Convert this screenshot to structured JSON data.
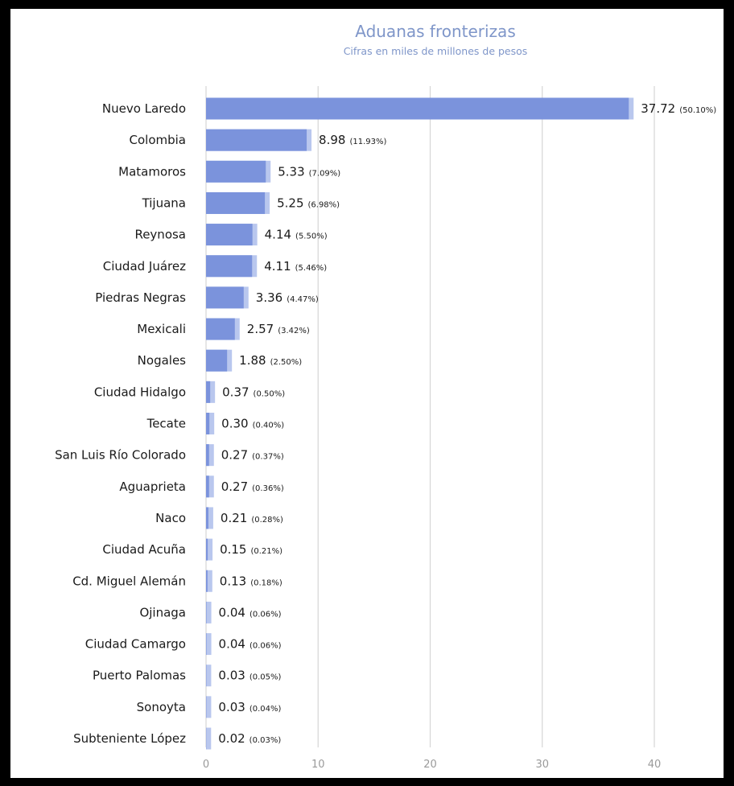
{
  "chart_data": {
    "type": "bar",
    "orientation": "horizontal",
    "title": "Aduanas fronterizas",
    "subtitle": "Cifras en miles de millones de pesos",
    "xlim": [
      0,
      40
    ],
    "x_ticks": [
      "0",
      "10",
      "20",
      "30",
      "40"
    ],
    "grid": true,
    "bar_color": "#7b93dc",
    "bar_highlight_color": "#b9c7ee",
    "categories": [
      "Nuevo Laredo",
      "Colombia",
      "Matamoros",
      "Tijuana",
      "Reynosa",
      "Ciudad Juárez",
      "Piedras Negras",
      "Mexicali",
      "Nogales",
      "Ciudad Hidalgo",
      "Tecate",
      "San Luis Río Colorado",
      "Aguaprieta",
      "Naco",
      "Ciudad Acuña",
      "Cd. Miguel Alemán",
      "Ojinaga",
      "Ciudad Camargo",
      "Puerto Palomas",
      "Sonoyta",
      "Subteniente López"
    ],
    "values": [
      37.72,
      8.98,
      5.33,
      5.25,
      4.14,
      4.11,
      3.36,
      2.57,
      1.88,
      0.37,
      0.3,
      0.27,
      0.27,
      0.21,
      0.15,
      0.13,
      0.04,
      0.04,
      0.03,
      0.03,
      0.02
    ],
    "value_labels": [
      "37.72",
      "8.98",
      "5.33",
      "5.25",
      "4.14",
      "4.11",
      "3.36",
      "2.57",
      "1.88",
      "0.37",
      "0.30",
      "0.27",
      "0.27",
      "0.21",
      "0.15",
      "0.13",
      "0.04",
      "0.04",
      "0.03",
      "0.03",
      "0.02"
    ],
    "percent_labels": [
      "(50.10%)",
      "(11.93%)",
      "(7.09%)",
      "(6.98%)",
      "(5.50%)",
      "(5.46%)",
      "(4.47%)",
      "(3.42%)",
      "(2.50%)",
      "(0.50%)",
      "(0.40%)",
      "(0.37%)",
      "(0.36%)",
      "(0.28%)",
      "(0.21%)",
      "(0.18%)",
      "(0.06%)",
      "(0.06%)",
      "(0.05%)",
      "(0.04%)",
      "(0.03%)"
    ]
  }
}
